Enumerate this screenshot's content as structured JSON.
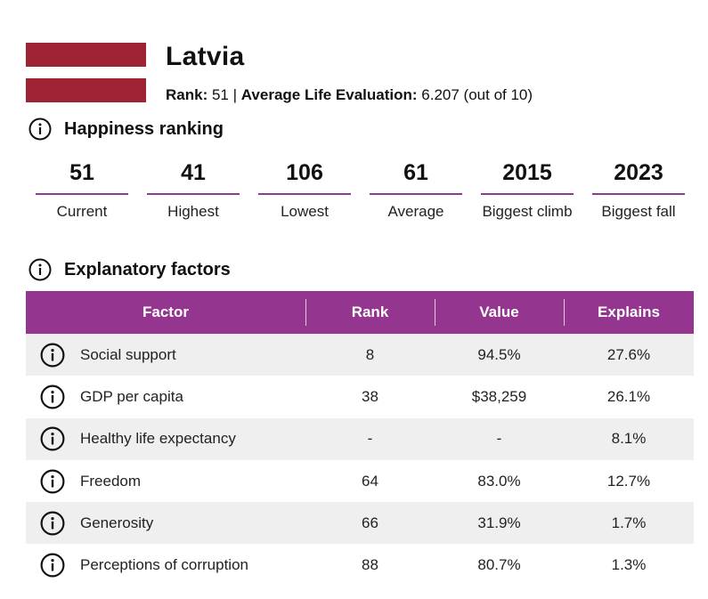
{
  "flag": {
    "colors": {
      "carmine": "#9e2433",
      "white": "#ffffff"
    }
  },
  "header": {
    "country": "Latvia",
    "rank_label": "Rank:",
    "rank_value": "51",
    "separator": "|",
    "evaluation_label": "Average Life Evaluation:",
    "evaluation_value": "6.207 (out of 10)"
  },
  "happiness": {
    "title": "Happiness ranking",
    "stats": [
      {
        "value": "51",
        "label": "Current"
      },
      {
        "value": "41",
        "label": "Highest"
      },
      {
        "value": "106",
        "label": "Lowest"
      },
      {
        "value": "61",
        "label": "Average"
      },
      {
        "value": "2015",
        "label": "Biggest climb"
      },
      {
        "value": "2023",
        "label": "Biggest fall"
      }
    ]
  },
  "factors": {
    "title": "Explanatory factors",
    "columns": [
      "Factor",
      "Rank",
      "Value",
      "Explains"
    ],
    "rows": [
      {
        "factor": "Social support",
        "rank": "8",
        "value": "94.5%",
        "explains": "27.6%"
      },
      {
        "factor": "GDP per capita",
        "rank": "38",
        "value": "$38,259",
        "explains": "26.1%"
      },
      {
        "factor": "Healthy life expectancy",
        "rank": "-",
        "value": "-",
        "explains": "8.1%"
      },
      {
        "factor": "Freedom",
        "rank": "64",
        "value": "83.0%",
        "explains": "12.7%"
      },
      {
        "factor": "Generosity",
        "rank": "66",
        "value": "31.9%",
        "explains": "1.7%"
      },
      {
        "factor": "Perceptions of corruption",
        "rank": "88",
        "value": "80.7%",
        "explains": "1.3%"
      }
    ]
  },
  "theme": {
    "accent": "#8e3a8e",
    "header_bg": "#94358f",
    "row_alt": "#efefef"
  }
}
